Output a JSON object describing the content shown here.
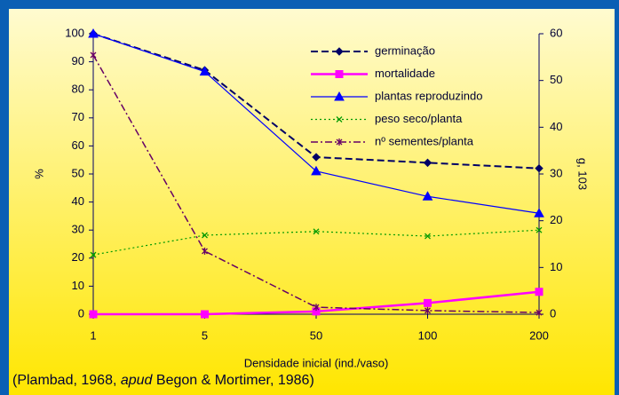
{
  "chart_data": {
    "type": "line",
    "categories": [
      "1",
      "5",
      "50",
      "100",
      "200"
    ],
    "xlabel": "Densidade inicial (ind./vaso)",
    "ylabel": "%",
    "y2label": "g, 103",
    "ylim": [
      0,
      100
    ],
    "yticks": [
      0,
      10,
      20,
      30,
      40,
      50,
      60,
      70,
      80,
      90,
      100
    ],
    "y2lim": [
      0,
      60
    ],
    "y2ticks": [
      0,
      10,
      20,
      30,
      40,
      50,
      60
    ],
    "legend": "upper right",
    "series": [
      {
        "name": "germinação",
        "color": "#000066",
        "marker": "diamond",
        "values": [
          100,
          87,
          56,
          54,
          52
        ]
      },
      {
        "name": "mortalidade",
        "color": "#ff00ff",
        "marker": "square",
        "values": [
          0,
          0,
          1,
          4,
          8
        ]
      },
      {
        "name": "plantas reproduzindo",
        "color": "#0000ff",
        "marker": "triangle",
        "values": [
          100,
          86.5,
          51,
          42,
          36
        ]
      },
      {
        "name": "peso seco/planta",
        "color": "#009900",
        "marker": "x",
        "axis": "y2",
        "values": [
          12.7,
          16.9,
          17.7,
          16.7,
          18.0
        ]
      },
      {
        "name": "nº sementes/planta",
        "color": "#660066",
        "marker": "asterisk",
        "values": [
          92.4,
          22.5,
          2.5,
          1.3,
          0.6
        ]
      }
    ],
    "source": {
      "before": "(Plambad, 1968, ",
      "italic": "apud",
      "after": " Begon & Mortimer, 1986)"
    }
  }
}
